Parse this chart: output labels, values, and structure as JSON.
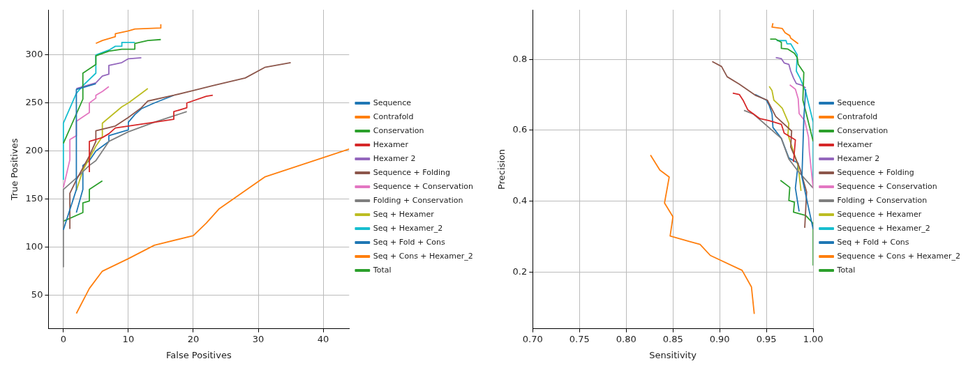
{
  "chart_data": [
    {
      "type": "line",
      "xlabel": "False Positives",
      "ylabel": "True Positives",
      "xlim": [
        -2.3,
        44
      ],
      "ylim": [
        15,
        347
      ],
      "xticks": [
        0,
        10,
        20,
        30,
        40
      ],
      "yticks": [
        50,
        100,
        150,
        200,
        250,
        300
      ],
      "grid": true,
      "legend": "right",
      "series": [
        {
          "name": "Sequence",
          "color": "#1f77b4",
          "x": [
            0,
            2,
            2,
            5
          ],
          "values": [
            118,
            160,
            264,
            270
          ]
        },
        {
          "name": "Contrafold",
          "color": "#ff7f0e",
          "x": [
            5,
            6,
            8,
            8,
            10,
            11,
            15,
            15
          ],
          "values": [
            312,
            315,
            319,
            322,
            325,
            327,
            328,
            332
          ]
        },
        {
          "name": "Conservation",
          "color": "#2ca02c",
          "x": [
            0,
            3,
            3,
            5,
            5,
            7,
            9,
            11,
            11,
            13,
            15
          ],
          "values": [
            208,
            254,
            281,
            290,
            299,
            304,
            306,
            306,
            312,
            315,
            316
          ]
        },
        {
          "name": "Hexamer",
          "color": "#d62728",
          "x": [
            4,
            4,
            6,
            7,
            8,
            10,
            14,
            17,
            17,
            19,
            19,
            22,
            23
          ],
          "values": [
            178,
            210,
            214,
            218,
            224,
            226,
            230,
            233,
            241,
            245,
            250,
            257,
            258
          ]
        },
        {
          "name": "Hexamer 2",
          "color": "#9467bd",
          "x": [
            2,
            5,
            6,
            7,
            7,
            9,
            10,
            12
          ],
          "values": [
            265,
            271,
            278,
            280,
            289,
            292,
            296,
            297
          ]
        },
        {
          "name": "Sequence + Folding",
          "color": "#8c564b",
          "x": [
            1,
            1,
            2,
            4,
            5,
            5,
            8,
            10,
            12,
            13,
            17,
            20,
            23,
            28,
            31,
            35
          ],
          "values": [
            119,
            156,
            170,
            195,
            210,
            221,
            226,
            235,
            245,
            252,
            258,
            263,
            268,
            276,
            287,
            292
          ]
        },
        {
          "name": "Sequence + Conservation",
          "color": "#e377c2",
          "x": [
            0,
            1,
            1,
            2,
            2,
            4,
            4,
            5,
            5,
            6,
            7
          ],
          "values": [
            162,
            191,
            212,
            216,
            231,
            240,
            250,
            255,
            258,
            262,
            267
          ]
        },
        {
          "name": "Folding + Conservation",
          "color": "#7f7f7f",
          "x": [
            0,
            0,
            2,
            4,
            5,
            7,
            10,
            14,
            19
          ],
          "values": [
            79,
            160,
            172,
            185,
            190,
            210,
            220,
            230,
            241
          ]
        },
        {
          "name": "Seq + Hexamer",
          "color": "#bcbd22",
          "x": [
            2,
            3,
            5,
            6,
            6,
            9,
            10,
            12,
            13
          ],
          "values": [
            159,
            180,
            205,
            215,
            229,
            246,
            250,
            260,
            265
          ]
        },
        {
          "name": "Seq + Hexamer_2",
          "color": "#17becf",
          "x": [
            0,
            0,
            2,
            3,
            5,
            5,
            7,
            8,
            9,
            9,
            11
          ],
          "values": [
            170,
            229,
            260,
            268,
            281,
            300,
            305,
            309,
            309,
            313,
            313
          ]
        },
        {
          "name": "Seq + Fold + Cons",
          "color": "#1f77b4",
          "x": [
            2,
            3,
            3,
            4,
            5,
            7,
            7,
            10,
            10,
            11,
            12,
            14,
            17
          ],
          "values": [
            136,
            160,
            185,
            190,
            200,
            210,
            216,
            222,
            230,
            238,
            244,
            250,
            258
          ]
        },
        {
          "name": "Seq + Cons + Hexamer_2",
          "color": "#ff7f0e",
          "x": [
            2,
            4,
            6,
            10,
            14,
            20,
            22,
            24,
            31,
            44
          ],
          "values": [
            31,
            57,
            75,
            88,
            102,
            112,
            125,
            140,
            173,
            202
          ]
        },
        {
          "name": "Total",
          "color": "#2ca02c",
          "x": [
            0,
            3,
            3,
            4,
            4,
            6
          ],
          "values": [
            127,
            136,
            146,
            148,
            160,
            169
          ]
        }
      ]
    },
    {
      "type": "line",
      "xlabel": "Sensitivity",
      "ylabel": "Precision",
      "xlim": [
        0.7,
        1.0
      ],
      "ylim": [
        0.04,
        0.94
      ],
      "xticks": [
        {
          "value": 0.7,
          "label": "0.70"
        },
        0.75,
        {
          "value": 0.8,
          "label": "0.80"
        },
        0.85,
        {
          "value": 0.9,
          "label": "0.90"
        },
        0.95,
        {
          "value": 1.0,
          "label": "1.00"
        }
      ],
      "yticks": [
        0.2,
        0.4,
        0.6,
        0.8
      ],
      "grid": true,
      "legend": "right",
      "series": [
        {
          "name": "Sequence",
          "color": "#1f77b4",
          "x": [
            0.992,
            0.99,
            0.988,
            1.0
          ],
          "values": [
            0.716,
            0.631,
            0.468,
            0.321
          ]
        },
        {
          "name": "Contrafold",
          "color": "#ff7f0e",
          "x": [
            0.957,
            0.956,
            0.967,
            0.97,
            0.975,
            0.976,
            0.984
          ],
          "values": [
            0.902,
            0.891,
            0.887,
            0.875,
            0.867,
            0.86,
            0.844
          ]
        },
        {
          "name": "Conservation",
          "color": "#2ca02c",
          "x": [
            0.954,
            0.96,
            0.966,
            0.966,
            0.973,
            0.98,
            0.983,
            0.984,
            0.99,
            0.989,
            0.992,
            1.0
          ],
          "values": [
            0.857,
            0.857,
            0.848,
            0.831,
            0.829,
            0.817,
            0.805,
            0.786,
            0.763,
            0.685,
            0.654,
            0.569
          ]
        },
        {
          "name": "Hexamer",
          "color": "#d62728",
          "x": [
            0.914,
            0.921,
            0.925,
            0.93,
            0.943,
            0.953,
            0.966,
            0.969,
            0.981,
            0.979
          ],
          "values": [
            0.705,
            0.701,
            0.685,
            0.658,
            0.633,
            0.627,
            0.617,
            0.592,
            0.573,
            0.511
          ]
        },
        {
          "name": "Hexamer 2",
          "color": "#9467bd",
          "x": [
            0.96,
            0.966,
            0.969,
            0.974,
            0.976,
            0.979,
            0.982,
            0.987,
            0.992
          ],
          "values": [
            0.805,
            0.802,
            0.79,
            0.786,
            0.767,
            0.747,
            0.732,
            0.728,
            0.72
          ]
        },
        {
          "name": "Sequence + Folding",
          "color": "#8c564b",
          "x": [
            0.892,
            0.902,
            0.908,
            0.921,
            0.938,
            0.951,
            0.96,
            0.977,
            0.976,
            0.986,
            0.993,
            0.991
          ],
          "values": [
            0.794,
            0.78,
            0.751,
            0.73,
            0.699,
            0.685,
            0.639,
            0.598,
            0.553,
            0.491,
            0.426,
            0.325
          ]
        },
        {
          "name": "Sequence + Conservation",
          "color": "#e377c2",
          "x": [
            0.975,
            0.981,
            0.984,
            0.985,
            0.991,
            0.995,
            0.996,
            1.0
          ],
          "values": [
            0.728,
            0.716,
            0.689,
            0.647,
            0.627,
            0.581,
            0.538,
            0.437
          ]
        },
        {
          "name": "Folding + Conservation",
          "color": "#7f7f7f",
          "x": [
            0.926,
            0.936,
            0.966,
            0.974,
            0.984,
            1.0
          ],
          "values": [
            0.656,
            0.646,
            0.577,
            0.519,
            0.484,
            0.437
          ]
        },
        {
          "name": "Sequence + Hexamer",
          "color": "#bcbd22",
          "x": [
            0.953,
            0.956,
            0.958,
            0.963,
            0.967,
            0.974,
            0.973,
            0.984,
            0.987
          ],
          "values": [
            0.724,
            0.712,
            0.685,
            0.673,
            0.662,
            0.619,
            0.588,
            0.499,
            0.429
          ]
        },
        {
          "name": "Sequence + Hexamer_2",
          "color": "#17becf",
          "x": [
            0.961,
            0.971,
            0.972,
            0.976,
            0.983,
            0.982,
            0.986,
            0.992,
            1.0,
            1.0
          ],
          "values": [
            0.853,
            0.853,
            0.844,
            0.844,
            0.813,
            0.767,
            0.747,
            0.709,
            0.623,
            0.45
          ]
        },
        {
          "name": "Seq + Fold + Cons",
          "color": "#1f77b4",
          "x": [
            0.938,
            0.95,
            0.953,
            0.956,
            0.957,
            0.966,
            0.974,
            0.984,
            0.981,
            0.985
          ],
          "values": [
            0.701,
            0.685,
            0.67,
            0.647,
            0.608,
            0.577,
            0.522,
            0.507,
            0.437,
            0.371
          ]
        },
        {
          "name": "Sequence + Cons + Hexamer_2",
          "color": "#ff7f0e",
          "x": [
            0.826,
            0.836,
            0.846,
            0.841,
            0.85,
            0.847,
            0.868,
            0.879,
            0.89,
            0.924,
            0.934,
            0.937
          ],
          "values": [
            0.53,
            0.488,
            0.468,
            0.395,
            0.356,
            0.302,
            0.286,
            0.278,
            0.247,
            0.205,
            0.158,
            0.082
          ]
        },
        {
          "name": "Total",
          "color": "#2ca02c",
          "x": [
            0.965,
            0.975,
            0.974,
            0.98,
            0.979,
            0.992,
            1.0,
            1.0
          ],
          "values": [
            0.459,
            0.439,
            0.402,
            0.397,
            0.369,
            0.36,
            0.337,
            0.22
          ]
        }
      ]
    }
  ]
}
